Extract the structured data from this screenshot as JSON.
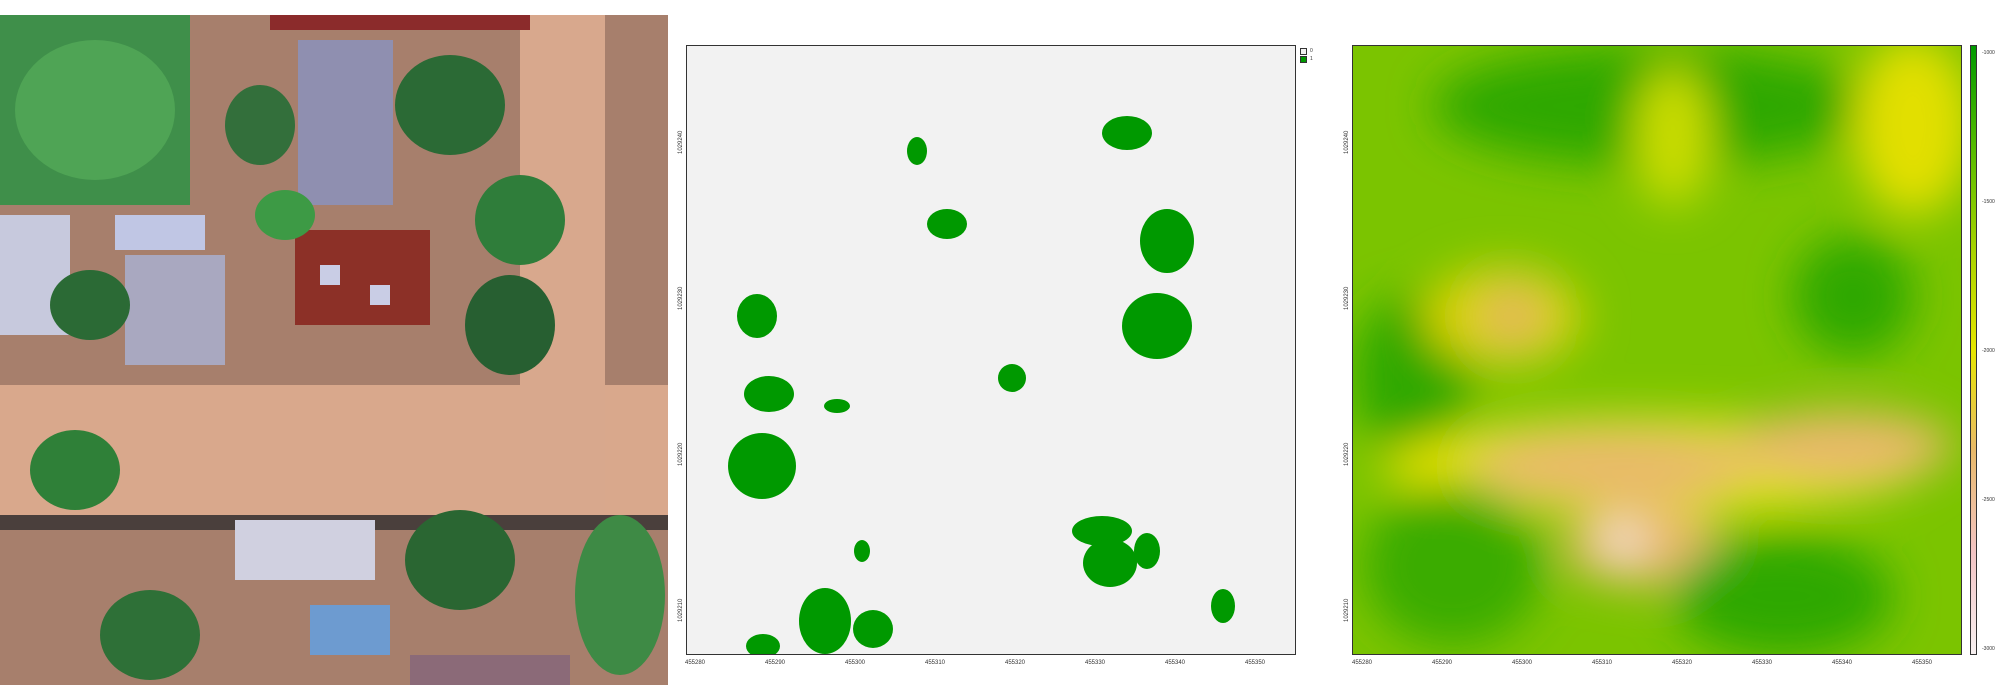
{
  "panels": [
    "aerial-photo",
    "tree-mask-map",
    "height-raster-map"
  ],
  "mask_map": {
    "legend": [
      {
        "label": "0",
        "color": "#f2f2f2"
      },
      {
        "label": "1",
        "color": "#009900"
      }
    ],
    "x_ticks": [
      "455280",
      "455290",
      "455300",
      "455310",
      "455320",
      "455330",
      "455340",
      "455350"
    ],
    "y_ticks": [
      "1029240",
      "1029230",
      "1029220",
      "1029210"
    ]
  },
  "height_map": {
    "x_ticks": [
      "455280",
      "455290",
      "455300",
      "455310",
      "455320",
      "455330",
      "455340",
      "455350"
    ],
    "y_ticks": [
      "1029240",
      "1029230",
      "1029220",
      "1029210"
    ],
    "colorbar_ticks": [
      "-1000",
      "-1500",
      "-2000",
      "-2500",
      "-3000"
    ],
    "colormap": [
      "#009900",
      "#55bb00",
      "#a6d200",
      "#e6e600",
      "#e8b96a",
      "#f2c4c4",
      "#f7f0f0"
    ]
  }
}
